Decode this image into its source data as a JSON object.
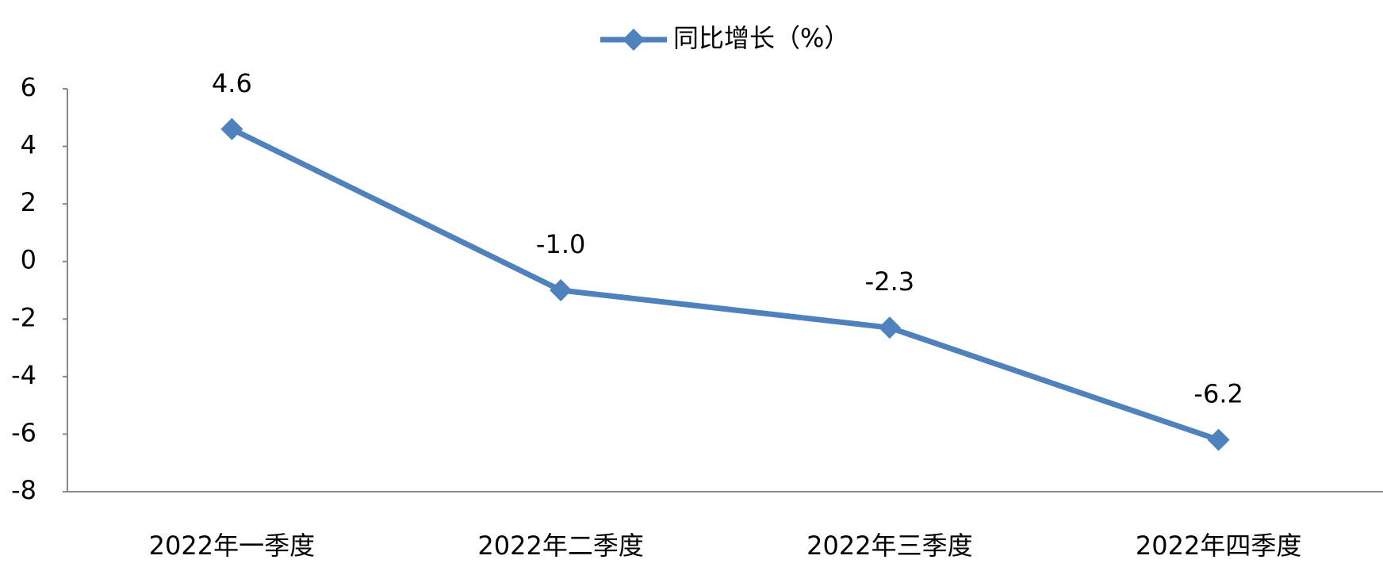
{
  "chart_data": {
    "type": "line",
    "categories": [
      "2022年一季度",
      "2022年二季度",
      "2022年三季度",
      "2022年四季度"
    ],
    "series": [
      {
        "name": "同比增长（%）",
        "color": "#4f81bd",
        "values": [
          4.6,
          -1.0,
          -2.3,
          -6.2
        ],
        "value_labels": [
          "4.6",
          "-1.0",
          "-2.3",
          "-6.2"
        ]
      }
    ],
    "ylim": [
      -8,
      6
    ],
    "yticks": [
      -8,
      -6,
      -4,
      -2,
      0,
      2,
      4,
      6
    ],
    "legend": "top",
    "grid": false
  }
}
